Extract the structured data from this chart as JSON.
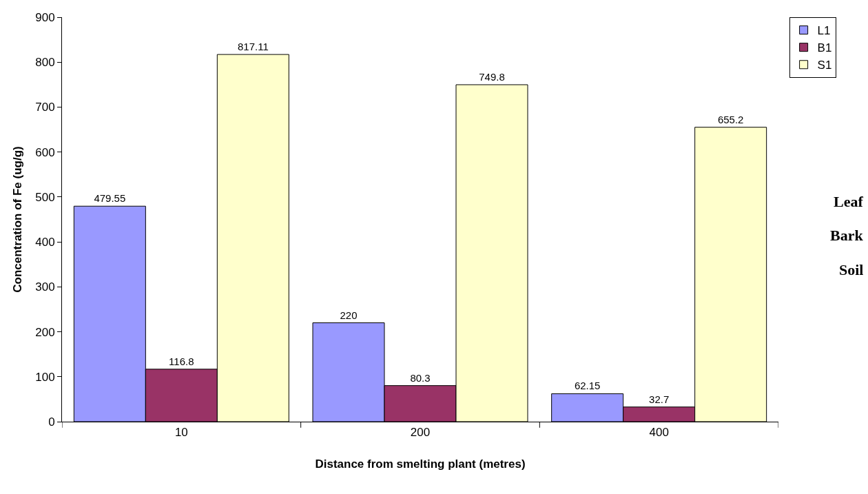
{
  "chart_data": {
    "type": "bar",
    "xlabel": "Distance from smelting plant (metres)",
    "ylabel": "Concentration of Fe (ug/g)",
    "categories": [
      "10",
      "200",
      "400"
    ],
    "series": [
      {
        "name": "L1",
        "color": "#9999ff",
        "values": [
          479.55,
          220,
          62.15
        ]
      },
      {
        "name": "B1",
        "color": "#993366",
        "values": [
          116.8,
          80.3,
          32.7
        ]
      },
      {
        "name": "S1",
        "color": "#ffffcc",
        "values": [
          817.11,
          749.8,
          655.2
        ]
      }
    ],
    "ylim": [
      0,
      900
    ],
    "yticks": [
      0,
      100,
      200,
      300,
      400,
      500,
      600,
      700,
      800,
      900
    ],
    "data_labels": true,
    "legend": "top right",
    "annotations": [
      "Leaf",
      "Bark",
      "Soil"
    ]
  }
}
